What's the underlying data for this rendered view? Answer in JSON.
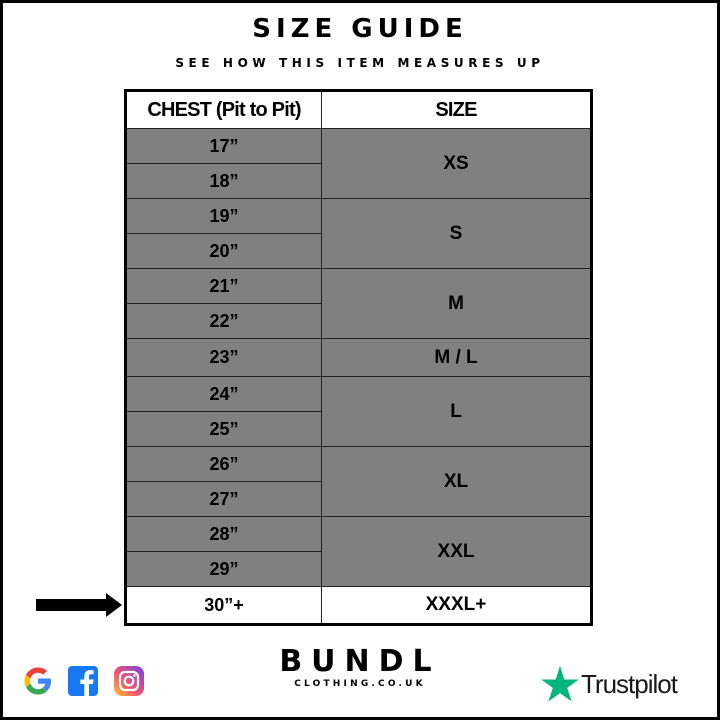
{
  "header": {
    "title": "SIZE GUIDE",
    "subtitle": "SEE HOW THIS ITEM MEASURES UP"
  },
  "table": {
    "columns": [
      "CHEST (Pit to Pit)",
      "SIZE"
    ],
    "groups": [
      {
        "size": "XS",
        "chest": [
          "17”",
          "18”"
        ]
      },
      {
        "size": "S",
        "chest": [
          "19”",
          "20”"
        ]
      },
      {
        "size": "M",
        "chest": [
          "21”",
          "22”"
        ]
      },
      {
        "size": "M / L",
        "chest": [
          "23”"
        ]
      },
      {
        "size": "L",
        "chest": [
          "24”",
          "25”"
        ]
      },
      {
        "size": "XL",
        "chest": [
          "26”",
          "27”"
        ]
      },
      {
        "size": "XXL",
        "chest": [
          "28”",
          "29”"
        ]
      },
      {
        "size": "XXXL+",
        "chest": [
          "30”+"
        ],
        "highlighted": true
      }
    ],
    "row_color": "#808080"
  },
  "footer": {
    "social_icons": [
      "google-icon",
      "facebook-icon",
      "instagram-icon"
    ],
    "brand": "BUNDL",
    "brand_sub": "CLOTHING.CO.UK",
    "trustpilot": "Trustpilot",
    "trustpilot_color": "#00b67a"
  }
}
